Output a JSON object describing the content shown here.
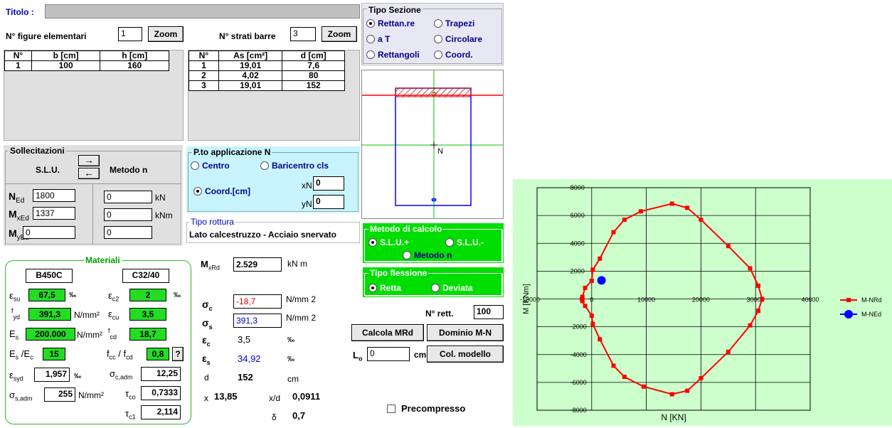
{
  "title": {
    "label": "Titolo :",
    "value": ""
  },
  "figure": {
    "label": "N° figure elementari",
    "value": "1",
    "zoom": "Zoom",
    "headers": [
      "N°",
      "b [cm]",
      "h [cm]"
    ],
    "rows": [
      [
        "1",
        "100",
        "160"
      ]
    ]
  },
  "strati": {
    "label": "N° strati barre",
    "value": "3",
    "zoom": "Zoom",
    "headers": [
      "N°",
      "As [cm²]",
      "d [cm]"
    ],
    "rows": [
      [
        "1",
        "19,01",
        "7,6"
      ],
      [
        "2",
        "4,02",
        "80"
      ],
      [
        "3",
        "19,01",
        "152"
      ]
    ]
  },
  "tipo_sezione": {
    "legend": "Tipo Sezione",
    "options": [
      "Rettan.re",
      "Trapezi",
      "a T",
      "Circolare",
      "Rettangoli",
      "Coord."
    ],
    "selected": "Rettan.re"
  },
  "section": {
    "n_label": "N"
  },
  "sollecitazioni": {
    "legend": "Sollecitazioni",
    "slu": "S.L.U.",
    "metodo": "Metodo n",
    "ned_label": "N",
    "ned_sub": "Ed",
    "ned": "1800",
    "ned_n": "0",
    "ned_unit": "kN",
    "mxed_label": "M",
    "mxed_sub": "xEd",
    "mxed": "1337",
    "mxed_n": "0",
    "mxed_unit": "kNm",
    "myed_label": "M",
    "myed_sub": "yEd",
    "myed": "0",
    "myed_n": "0"
  },
  "applicazione": {
    "legend": "P.to applicazione N",
    "centro": "Centro",
    "baricentro": "Baricentro cls",
    "coord": "Coord.[cm]",
    "xn_label": "xN",
    "xn": "0",
    "yn_label": "yN",
    "yn": "0"
  },
  "rottura": {
    "legend": "Tipo rottura",
    "value": "Lato calcestruzzo - Acciaio snervato"
  },
  "metodo_calcolo": {
    "legend": "Metodo di calcolo",
    "slu_plus": "S.L.U.+",
    "slu_minus": "S.L.U.-",
    "metodo_n": "Metodo n"
  },
  "flessione": {
    "legend": "Tipo flessione",
    "retta": "Retta",
    "deviata": "Deviata"
  },
  "materiali": {
    "legend": "Materiali",
    "steel": "B450C",
    "concrete": "C32/40",
    "esu": "67,5",
    "esu_unit": "‰",
    "ec2": "2",
    "ec2_unit": "‰",
    "fyd": "391,3",
    "fyd_unit": "N/mm²",
    "ecu": "3,5",
    "es": "200.000",
    "es_unit": "N/mm²",
    "fcd": "18,7",
    "es_ec": "15",
    "fcc_fcd": "0,8",
    "help": "?",
    "esyd": "1,957",
    "esyd_unit": "‰",
    "sc_adm": "12,25",
    "ss_adm": "255",
    "ss_unit": "N/mm²",
    "tco": "0,7333",
    "tc1": "2,114"
  },
  "results": {
    "mxrd_label": "M",
    "mxrd_sub": "xRd",
    "mxrd": "2.529",
    "mxrd_unit": "kN m",
    "sc": "-18,7",
    "sc_unit": "N/mm 2",
    "ss": "391,3",
    "ss_unit": "N/mm 2",
    "ec": "3,5",
    "ec_unit": "‰",
    "es": "34,92",
    "es_unit": "‰",
    "d_label": "d",
    "d": "152",
    "d_unit": "cm",
    "x_label": "x",
    "x": "13,85",
    "xd_label": "x/d",
    "xd": "0,0911",
    "delta_label": "δ",
    "delta": "0,7"
  },
  "right": {
    "nrett_label": "N° rett.",
    "nrett": "100",
    "calcola": "Calcola MRd",
    "dominio": "Dominio M-N",
    "lo_label": "L",
    "lo_sub": "o",
    "lo": "0",
    "lo_unit": "cm",
    "col": "Col. modello",
    "precompresso": "Precompresso"
  },
  "chart_data": {
    "type": "scatter",
    "xlabel": "N [KN]",
    "ylabel": "M [KNm]",
    "xlim": [
      -10000,
      40000
    ],
    "ylim": [
      -8000,
      8000
    ],
    "grid": true,
    "legend": "right",
    "xticks": [
      "-10000",
      "0",
      "10000",
      "20000",
      "30000",
      "40000"
    ],
    "yticks": [
      "8000",
      "6000",
      "4000",
      "2000",
      "0",
      "-2000",
      "-4000",
      "-6000",
      "-8000"
    ],
    "series": [
      {
        "name": "M-NRd",
        "color": "#ff0000",
        "points": [
          [
            -1800,
            0
          ],
          [
            -1700,
            150
          ],
          [
            -1200,
            800
          ],
          [
            0,
            1300
          ],
          [
            200,
            2100
          ],
          [
            1500,
            2900
          ],
          [
            4000,
            4800
          ],
          [
            6000,
            5700
          ],
          [
            9000,
            6300
          ],
          [
            14700,
            6850
          ],
          [
            17500,
            6550
          ],
          [
            20000,
            5700
          ],
          [
            25000,
            3800
          ],
          [
            29000,
            2200
          ],
          [
            30500,
            950
          ],
          [
            31200,
            0
          ],
          [
            30500,
            -850
          ],
          [
            29000,
            -1900
          ],
          [
            25000,
            -3800
          ],
          [
            20000,
            -5700
          ],
          [
            17500,
            -6600
          ],
          [
            14700,
            -6850
          ],
          [
            9500,
            -6300
          ],
          [
            6000,
            -5600
          ],
          [
            4000,
            -4800
          ],
          [
            1500,
            -2900
          ],
          [
            200,
            -1800
          ],
          [
            0,
            -1200
          ],
          [
            -1200,
            -500
          ],
          [
            -1700,
            -150
          ],
          [
            -1800,
            0
          ]
        ]
      },
      {
        "name": "M-NEd",
        "color": "#0000ff",
        "points": [
          [
            1800,
            1337
          ]
        ]
      }
    ]
  }
}
